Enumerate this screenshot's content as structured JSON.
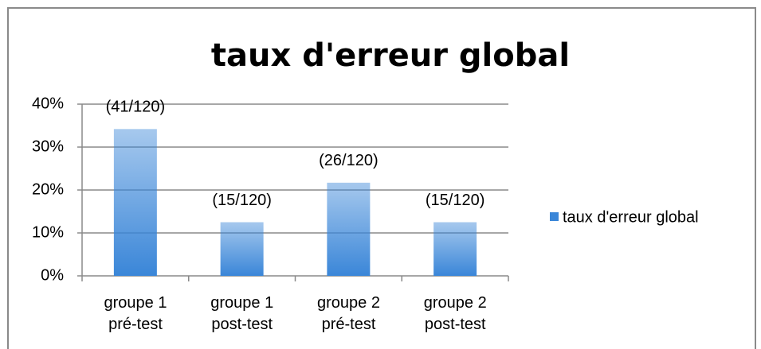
{
  "chart_data": {
    "type": "bar",
    "title": "taux d'erreur global",
    "categories": [
      "groupe 1\npré-test",
      "groupe 1\npost-test",
      "groupe 2\npré-test",
      "groupe 2\npost-test"
    ],
    "series": [
      {
        "name": "taux d'erreur global",
        "color": "#3a86d8",
        "values": [
          34.2,
          12.5,
          21.7,
          12.5
        ],
        "value_labels": [
          "(41/120)",
          "(15/120)",
          "(26/120)",
          "(15/120)"
        ]
      }
    ],
    "ylim": [
      0,
      40
    ],
    "yticks": [
      {
        "value": 0,
        "label": "0%"
      },
      {
        "value": 10,
        "label": "10%"
      },
      {
        "value": 20,
        "label": "20%"
      },
      {
        "value": 30,
        "label": "30%"
      },
      {
        "value": 40,
        "label": "40%"
      }
    ],
    "grid": true,
    "legend": "right"
  }
}
